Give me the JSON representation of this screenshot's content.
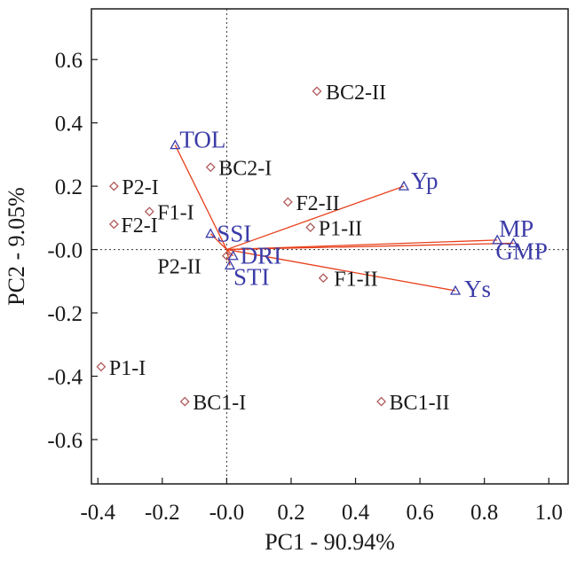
{
  "chart_data": {
    "type": "scatter",
    "title": "",
    "xlabel": "PC1 - 90.94%",
    "ylabel": "PC2 - 9.05%",
    "xlim": [
      -0.42,
      1.06
    ],
    "ylim": [
      -0.74,
      0.76
    ],
    "x_ticks": [
      "-0.4",
      "-0.2",
      "-0.0",
      "0.2",
      "0.4",
      "0.6",
      "0.8",
      "1.0"
    ],
    "y_ticks": [
      "0.6",
      "0.4",
      "0.2",
      "-0.0",
      "-0.2",
      "-0.4",
      "-0.6"
    ],
    "x_tick_values": [
      -0.4,
      -0.2,
      0.0,
      0.2,
      0.4,
      0.6,
      0.8,
      1.0
    ],
    "y_tick_values": [
      0.6,
      0.4,
      0.2,
      0.0,
      -0.2,
      -0.4,
      -0.6
    ],
    "reference_lines": {
      "x": 0,
      "y": 0,
      "style": "dotted"
    },
    "colors": {
      "observation_marker": "#b05a5a",
      "variable_marker": "#3b3ba8",
      "variable_label": "#3b3ba8",
      "vector_line": "#e8401c",
      "text": "#1a1a1a"
    },
    "observations": [
      {
        "label": "BC2-II",
        "x": 0.28,
        "y": 0.5
      },
      {
        "label": "BC2-I",
        "x": -0.05,
        "y": 0.26
      },
      {
        "label": "P2-I",
        "x": -0.35,
        "y": 0.2
      },
      {
        "label": "F2-II",
        "x": 0.19,
        "y": 0.15
      },
      {
        "label": "F1-I",
        "x": -0.24,
        "y": 0.12
      },
      {
        "label": "F2-I",
        "x": -0.35,
        "y": 0.08
      },
      {
        "label": "P1-II",
        "x": 0.26,
        "y": 0.07
      },
      {
        "label": "P2-II",
        "x": 0.0,
        "y": -0.02
      },
      {
        "label": "F1-II",
        "x": 0.3,
        "y": -0.09
      },
      {
        "label": "P1-I",
        "x": -0.39,
        "y": -0.37
      },
      {
        "label": "BC1-I",
        "x": -0.13,
        "y": -0.48
      },
      {
        "label": "BC1-II",
        "x": 0.48,
        "y": -0.48
      }
    ],
    "variables": [
      {
        "label": "TOL",
        "x": -0.16,
        "y": 0.33
      },
      {
        "label": "Yp",
        "x": 0.55,
        "y": 0.2
      },
      {
        "label": "SSI",
        "x": -0.05,
        "y": 0.05
      },
      {
        "label": "MP",
        "x": 0.84,
        "y": 0.03
      },
      {
        "label": "GMP",
        "x": 0.89,
        "y": 0.02
      },
      {
        "label": "DRI",
        "x": 0.02,
        "y": -0.02
      },
      {
        "label": "STI",
        "x": 0.01,
        "y": -0.05
      },
      {
        "label": "Ys",
        "x": 0.71,
        "y": -0.13
      }
    ]
  }
}
